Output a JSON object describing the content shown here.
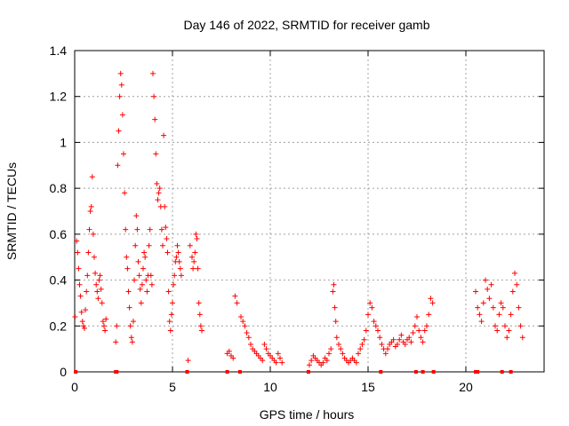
{
  "chart_data": {
    "type": "scatter",
    "title": "Day 146 of 2022, SRMTID for receiver gamb",
    "xlabel": "GPS time / hours",
    "ylabel": "SRMTID / TECUs",
    "xlim": [
      0,
      24
    ],
    "ylim": [
      0,
      1.4
    ],
    "x_ticks": [
      0,
      5,
      10,
      15,
      20
    ],
    "x_tick_labels": [
      "0",
      "5",
      "10",
      "15",
      "20"
    ],
    "y_ticks": [
      0,
      0.2,
      0.4,
      0.6,
      0.8,
      1.0,
      1.2,
      1.4
    ],
    "y_tick_labels": [
      "0",
      "0.2",
      "0.4",
      "0.6",
      "0.8",
      "1",
      "1.2",
      "1.4"
    ],
    "grid": true,
    "marker": "+",
    "color": "#ff0000",
    "series": [
      {
        "name": "SRMTID",
        "points": [
          [
            0.02,
            0.24
          ],
          [
            0.1,
            0.57
          ],
          [
            0.15,
            0.52
          ],
          [
            0.2,
            0.45
          ],
          [
            0.25,
            0.38
          ],
          [
            0.3,
            0.33
          ],
          [
            0.35,
            0.26
          ],
          [
            0.4,
            0.22
          ],
          [
            0.45,
            0.2
          ],
          [
            0.5,
            0.19
          ],
          [
            0.55,
            0.27
          ],
          [
            0.6,
            0.35
          ],
          [
            0.65,
            0.42
          ],
          [
            0.7,
            0.52
          ],
          [
            0.75,
            0.62
          ],
          [
            0.8,
            0.7
          ],
          [
            0.85,
            0.72
          ],
          [
            0.9,
            0.85
          ],
          [
            0.95,
            0.6
          ],
          [
            1.0,
            0.5
          ],
          [
            1.05,
            0.43
          ],
          [
            1.1,
            0.38
          ],
          [
            1.15,
            0.35
          ],
          [
            1.2,
            0.32
          ],
          [
            1.25,
            0.4
          ],
          [
            1.3,
            0.42
          ],
          [
            1.35,
            0.36
          ],
          [
            1.4,
            0.3
          ],
          [
            1.45,
            0.22
          ],
          [
            1.5,
            0.2
          ],
          [
            1.55,
            0.18
          ],
          [
            1.6,
            0.23
          ],
          [
            2.1,
            0.13
          ],
          [
            2.15,
            0.2
          ],
          [
            2.2,
            0.9
          ],
          [
            2.25,
            1.05
          ],
          [
            2.3,
            1.2
          ],
          [
            2.35,
            1.3
          ],
          [
            2.4,
            1.25
          ],
          [
            2.45,
            1.12
          ],
          [
            2.5,
            0.95
          ],
          [
            2.55,
            0.78
          ],
          [
            2.6,
            0.62
          ],
          [
            2.65,
            0.5
          ],
          [
            2.7,
            0.45
          ],
          [
            2.75,
            0.35
          ],
          [
            2.8,
            0.28
          ],
          [
            2.85,
            0.2
          ],
          [
            2.9,
            0.15
          ],
          [
            2.95,
            0.13
          ],
          [
            3.0,
            0.22
          ],
          [
            3.05,
            0.4
          ],
          [
            3.1,
            0.55
          ],
          [
            3.15,
            0.68
          ],
          [
            3.2,
            0.62
          ],
          [
            3.25,
            0.48
          ],
          [
            3.3,
            0.42
          ],
          [
            3.35,
            0.36
          ],
          [
            3.4,
            0.3
          ],
          [
            3.45,
            0.38
          ],
          [
            3.5,
            0.45
          ],
          [
            3.55,
            0.52
          ],
          [
            3.6,
            0.5
          ],
          [
            3.65,
            0.4
          ],
          [
            3.7,
            0.35
          ],
          [
            3.75,
            0.42
          ],
          [
            3.8,
            0.55
          ],
          [
            3.85,
            0.62
          ],
          [
            3.9,
            0.42
          ],
          [
            3.95,
            0.38
          ],
          [
            4.0,
            1.3
          ],
          [
            4.05,
            1.2
          ],
          [
            4.1,
            1.1
          ],
          [
            4.15,
            0.95
          ],
          [
            4.2,
            0.82
          ],
          [
            4.25,
            0.75
          ],
          [
            4.3,
            0.78
          ],
          [
            4.35,
            0.8
          ],
          [
            4.4,
            0.72
          ],
          [
            4.45,
            0.62
          ],
          [
            4.5,
            0.55
          ],
          [
            4.55,
            1.03
          ],
          [
            4.6,
            0.72
          ],
          [
            4.65,
            0.63
          ],
          [
            4.7,
            0.58
          ],
          [
            4.75,
            0.52
          ],
          [
            4.8,
            0.35
          ],
          [
            4.85,
            0.22
          ],
          [
            4.9,
            0.18
          ],
          [
            4.95,
            0.25
          ],
          [
            5.0,
            0.3
          ],
          [
            5.05,
            0.38
          ],
          [
            5.1,
            0.42
          ],
          [
            5.15,
            0.48
          ],
          [
            5.2,
            0.5
          ],
          [
            5.25,
            0.55
          ],
          [
            5.3,
            0.52
          ],
          [
            5.35,
            0.48
          ],
          [
            5.4,
            0.45
          ],
          [
            5.45,
            0.42
          ],
          [
            5.8,
            0.05
          ],
          [
            5.9,
            0.55
          ],
          [
            6.0,
            0.5
          ],
          [
            6.05,
            0.45
          ],
          [
            6.1,
            0.48
          ],
          [
            6.15,
            0.52
          ],
          [
            6.2,
            0.6
          ],
          [
            6.25,
            0.58
          ],
          [
            6.3,
            0.45
          ],
          [
            6.35,
            0.3
          ],
          [
            6.4,
            0.25
          ],
          [
            6.45,
            0.2
          ],
          [
            6.5,
            0.18
          ],
          [
            7.8,
            0.08
          ],
          [
            7.9,
            0.09
          ],
          [
            8.0,
            0.07
          ],
          [
            8.1,
            0.06
          ],
          [
            8.2,
            0.33
          ],
          [
            8.3,
            0.3
          ],
          [
            8.5,
            0.24
          ],
          [
            8.6,
            0.22
          ],
          [
            8.7,
            0.2
          ],
          [
            8.8,
            0.17
          ],
          [
            8.9,
            0.15
          ],
          [
            9.0,
            0.12
          ],
          [
            9.1,
            0.1
          ],
          [
            9.2,
            0.09
          ],
          [
            9.3,
            0.08
          ],
          [
            9.4,
            0.07
          ],
          [
            9.5,
            0.06
          ],
          [
            9.6,
            0.05
          ],
          [
            9.7,
            0.12
          ],
          [
            9.8,
            0.1
          ],
          [
            9.9,
            0.08
          ],
          [
            10.0,
            0.07
          ],
          [
            10.1,
            0.06
          ],
          [
            10.2,
            0.05
          ],
          [
            10.3,
            0.04
          ],
          [
            10.4,
            0.08
          ],
          [
            10.5,
            0.06
          ],
          [
            10.6,
            0.04
          ],
          [
            12.0,
            0.03
          ],
          [
            12.1,
            0.05
          ],
          [
            12.2,
            0.07
          ],
          [
            12.3,
            0.06
          ],
          [
            12.4,
            0.05
          ],
          [
            12.5,
            0.04
          ],
          [
            12.6,
            0.03
          ],
          [
            12.7,
            0.04
          ],
          [
            12.8,
            0.06
          ],
          [
            12.9,
            0.05
          ],
          [
            13.0,
            0.08
          ],
          [
            13.1,
            0.1
          ],
          [
            13.2,
            0.35
          ],
          [
            13.25,
            0.38
          ],
          [
            13.3,
            0.28
          ],
          [
            13.35,
            0.22
          ],
          [
            13.4,
            0.15
          ],
          [
            13.5,
            0.12
          ],
          [
            13.6,
            0.1
          ],
          [
            13.7,
            0.08
          ],
          [
            13.8,
            0.06
          ],
          [
            13.9,
            0.05
          ],
          [
            14.0,
            0.04
          ],
          [
            14.1,
            0.05
          ],
          [
            14.2,
            0.06
          ],
          [
            14.3,
            0.05
          ],
          [
            14.4,
            0.04
          ],
          [
            14.5,
            0.08
          ],
          [
            14.6,
            0.1
          ],
          [
            14.7,
            0.12
          ],
          [
            14.8,
            0.14
          ],
          [
            14.9,
            0.18
          ],
          [
            15.0,
            0.25
          ],
          [
            15.1,
            0.3
          ],
          [
            15.2,
            0.28
          ],
          [
            15.3,
            0.22
          ],
          [
            15.4,
            0.2
          ],
          [
            15.5,
            0.18
          ],
          [
            15.6,
            0.15
          ],
          [
            15.7,
            0.12
          ],
          [
            15.8,
            0.1
          ],
          [
            15.9,
            0.08
          ],
          [
            16.0,
            0.1
          ],
          [
            16.1,
            0.12
          ],
          [
            16.2,
            0.13
          ],
          [
            16.3,
            0.14
          ],
          [
            16.4,
            0.11
          ],
          [
            16.5,
            0.12
          ],
          [
            16.6,
            0.14
          ],
          [
            16.7,
            0.16
          ],
          [
            16.8,
            0.13
          ],
          [
            16.9,
            0.12
          ],
          [
            17.0,
            0.14
          ],
          [
            17.1,
            0.15
          ],
          [
            17.2,
            0.13
          ],
          [
            17.3,
            0.17
          ],
          [
            17.4,
            0.2
          ],
          [
            17.5,
            0.24
          ],
          [
            17.6,
            0.18
          ],
          [
            17.7,
            0.15
          ],
          [
            17.8,
            0.13
          ],
          [
            17.9,
            0.18
          ],
          [
            18.0,
            0.2
          ],
          [
            18.1,
            0.25
          ],
          [
            18.2,
            0.32
          ],
          [
            18.3,
            0.3
          ],
          [
            20.5,
            0.35
          ],
          [
            20.6,
            0.28
          ],
          [
            20.7,
            0.25
          ],
          [
            20.8,
            0.22
          ],
          [
            20.9,
            0.3
          ],
          [
            21.0,
            0.4
          ],
          [
            21.1,
            0.36
          ],
          [
            21.2,
            0.32
          ],
          [
            21.3,
            0.38
          ],
          [
            21.4,
            0.28
          ],
          [
            21.5,
            0.2
          ],
          [
            21.6,
            0.18
          ],
          [
            21.7,
            0.25
          ],
          [
            21.8,
            0.3
          ],
          [
            21.9,
            0.28
          ],
          [
            22.0,
            0.2
          ],
          [
            22.1,
            0.15
          ],
          [
            22.2,
            0.18
          ],
          [
            22.3,
            0.25
          ],
          [
            22.4,
            0.35
          ],
          [
            22.5,
            0.43
          ],
          [
            22.6,
            0.38
          ],
          [
            22.7,
            0.28
          ],
          [
            22.8,
            0.2
          ],
          [
            22.9,
            0.15
          ]
        ]
      }
    ],
    "gap_markers_x": [
      0.05,
      2.1,
      2.15,
      5.75,
      7.8,
      8.45,
      11.95,
      15.65,
      17.45,
      17.8,
      18.35,
      20.5,
      20.6,
      21.85,
      22.3
    ]
  }
}
